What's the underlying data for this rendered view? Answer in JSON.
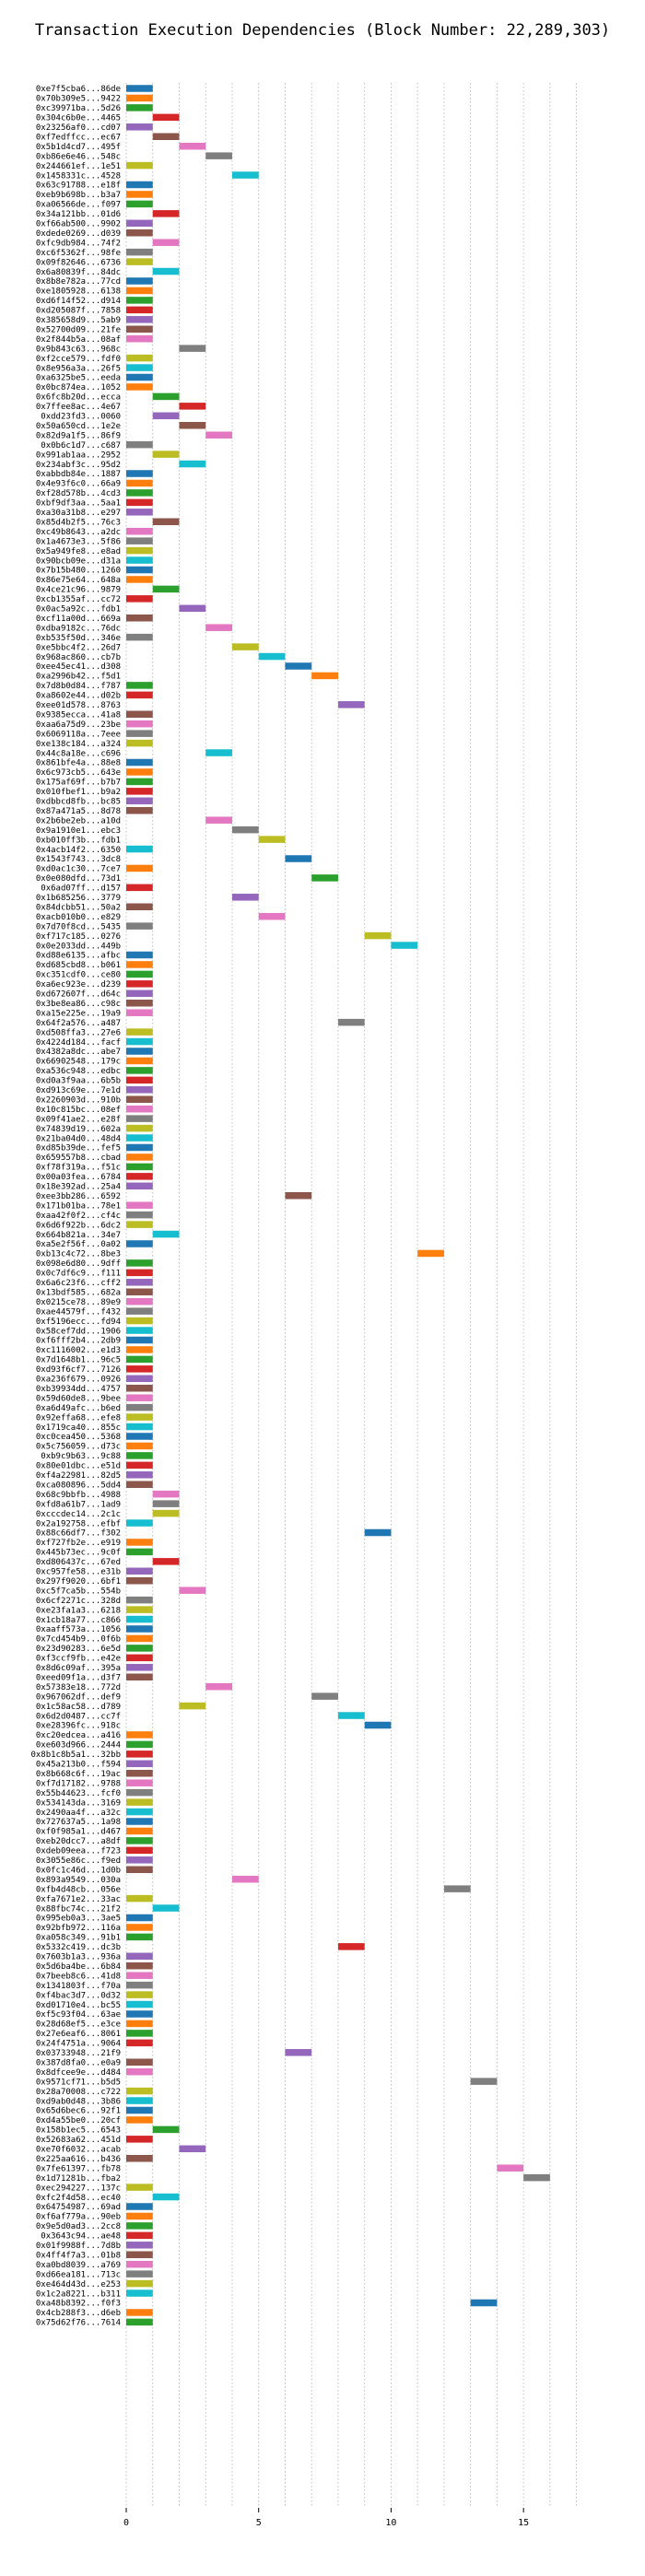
{
  "chart_data": {
    "type": "bar",
    "orientation": "horizontal",
    "subtype": "gantt",
    "title": "Transaction Execution Dependencies (Block Number: 22,289,303)",
    "xlabel": "",
    "ylabel": "",
    "xlim": [
      0,
      17.5
    ],
    "xticks": [
      0,
      5,
      10,
      15
    ],
    "grid": "vertical-dotted",
    "bar_length": 1,
    "palette": [
      "#1f77b4",
      "#ff7f0e",
      "#2ca02c",
      "#d62728",
      "#9467bd",
      "#8c564b",
      "#e377c2",
      "#7f7f7f",
      "#bcbd22",
      "#17becf"
    ],
    "transactions": [
      {
        "label": "0xe7f5cba6...86de",
        "start": 0
      },
      {
        "label": "0x70b309e5...9422",
        "start": 0
      },
      {
        "label": "0xc39971ba...5d26",
        "start": 0
      },
      {
        "label": "0x304c6b0e...4465",
        "start": 1
      },
      {
        "label": "0x23256af0...cd07",
        "start": 0
      },
      {
        "label": "0xf7edffcc...ec67",
        "start": 1
      },
      {
        "label": "0x5b1d4cd7...495f",
        "start": 2
      },
      {
        "label": "0xb86e6e46...548c",
        "start": 3
      },
      {
        "label": "0x244661ef...1e51",
        "start": 0
      },
      {
        "label": "0x1458331c...4528",
        "start": 4
      },
      {
        "label": "0x63c91788...e18f",
        "start": 0
      },
      {
        "label": "0xeb9b698b...b3a7",
        "start": 0
      },
      {
        "label": "0xa06566de...f097",
        "start": 0
      },
      {
        "label": "0x34a121bb...01d6",
        "start": 1
      },
      {
        "label": "0xf66ab500...9902",
        "start": 0
      },
      {
        "label": "0xdede0269...d039",
        "start": 0
      },
      {
        "label": "0xfc9db984...74f2",
        "start": 1
      },
      {
        "label": "0xc6f5362f...98fe",
        "start": 0
      },
      {
        "label": "0x09f82646...6736",
        "start": 0
      },
      {
        "label": "0x6a80839f...84dc",
        "start": 1
      },
      {
        "label": "0x8b8e782a...77cd",
        "start": 0
      },
      {
        "label": "0xe1805928...6138",
        "start": 0
      },
      {
        "label": "0xd6f14f52...d914",
        "start": 0
      },
      {
        "label": "0xd205087f...7858",
        "start": 0
      },
      {
        "label": "0x385658d9...5ab9",
        "start": 0
      },
      {
        "label": "0x52700d09...21fe",
        "start": 0
      },
      {
        "label": "0x2f844b5a...08af",
        "start": 0
      },
      {
        "label": "0x9b843c63...968c",
        "start": 2
      },
      {
        "label": "0xf2cce579...fdf0",
        "start": 0
      },
      {
        "label": "0x8e956a3a...26f5",
        "start": 0
      },
      {
        "label": "0xa6325be5...eeda",
        "start": 0
      },
      {
        "label": "0x0bc874ea...1052",
        "start": 0
      },
      {
        "label": "0x6fc8b20d...ecca",
        "start": 1
      },
      {
        "label": "0x7ffee8ac...4e67",
        "start": 2
      },
      {
        "label": "0xdd23fd3...0060",
        "start": 1
      },
      {
        "label": "0x50a650cd...1e2e",
        "start": 2
      },
      {
        "label": "0x82d9a1f5...86f9",
        "start": 3
      },
      {
        "label": "0x0b6c1d7...c687",
        "start": 0
      },
      {
        "label": "0x991ab1aa...2952",
        "start": 1
      },
      {
        "label": "0x234abf3c...95d2",
        "start": 2
      },
      {
        "label": "0xabbdb84e...1887",
        "start": 0
      },
      {
        "label": "0x4e93f6c0...66a9",
        "start": 0
      },
      {
        "label": "0xf28d578b...4cd3",
        "start": 0
      },
      {
        "label": "0xbf9df3aa...5aa1",
        "start": 0
      },
      {
        "label": "0xa30a31b8...e297",
        "start": 0
      },
      {
        "label": "0x85d4b2f5...76c3",
        "start": 1
      },
      {
        "label": "0xc49b8643...a2dc",
        "start": 0
      },
      {
        "label": "0x1a4673e3...5f86",
        "start": 0
      },
      {
        "label": "0x5a949fe8...e8ad",
        "start": 0
      },
      {
        "label": "0x90bcb09e...d31a",
        "start": 0
      },
      {
        "label": "0x7b15b480...1260",
        "start": 0
      },
      {
        "label": "0x86e75e64...648a",
        "start": 0
      },
      {
        "label": "0x4ce21c96...9879",
        "start": 1
      },
      {
        "label": "0xcb1355af...cc72",
        "start": 0
      },
      {
        "label": "0x0ac5a92c...fdb1",
        "start": 2
      },
      {
        "label": "0xcf11a00d...669a",
        "start": 0
      },
      {
        "label": "0xdba9182c...76dc",
        "start": 3
      },
      {
        "label": "0xb535f50d...346e",
        "start": 0
      },
      {
        "label": "0xe5bbc4f2...26d7",
        "start": 4
      },
      {
        "label": "0x968ac860...cb7b",
        "start": 5
      },
      {
        "label": "0xee45ec41...d308",
        "start": 6
      },
      {
        "label": "0xa2996b42...f5d1",
        "start": 7
      },
      {
        "label": "0x7d8b0d84...f787",
        "start": 0
      },
      {
        "label": "0xa8602e44...d02b",
        "start": 0
      },
      {
        "label": "0xee01d578...8763",
        "start": 8
      },
      {
        "label": "0x9385ecca...41a8",
        "start": 0
      },
      {
        "label": "0xaa6a75d9...23be",
        "start": 0
      },
      {
        "label": "0x6069118a...7eee",
        "start": 0
      },
      {
        "label": "0xe138c184...a324",
        "start": 0
      },
      {
        "label": "0x44c8a18e...c696",
        "start": 3
      },
      {
        "label": "0x861bfe4a...88e8",
        "start": 0
      },
      {
        "label": "0x6c973cb5...643e",
        "start": 0
      },
      {
        "label": "0x175af69f...b7b7",
        "start": 0
      },
      {
        "label": "0x010fbef1...b9a2",
        "start": 0
      },
      {
        "label": "0xdbbcd8fb...bc85",
        "start": 0
      },
      {
        "label": "0x87a471a5...8d78",
        "start": 0
      },
      {
        "label": "0x2b6be2eb...a10d",
        "start": 3
      },
      {
        "label": "0x9a1910e1...ebc3",
        "start": 4
      },
      {
        "label": "0xb010ff3b...fdb1",
        "start": 5
      },
      {
        "label": "0x4acb14f2...6350",
        "start": 0
      },
      {
        "label": "0x1543f743...3dc8",
        "start": 6
      },
      {
        "label": "0xd0ac1c30...7ce7",
        "start": 0
      },
      {
        "label": "0x0e080dfd...73d1",
        "start": 7
      },
      {
        "label": "0x6ad07ff...d157",
        "start": 0
      },
      {
        "label": "0x1b685256...3779",
        "start": 4
      },
      {
        "label": "0x84dcbb51...50a2",
        "start": 0
      },
      {
        "label": "0xacb010b0...e829",
        "start": 5
      },
      {
        "label": "0x7d70f8cd...5435",
        "start": 0
      },
      {
        "label": "0xf717c185...0276",
        "start": 9
      },
      {
        "label": "0x0e2033dd...449b",
        "start": 10
      },
      {
        "label": "0xd88e6135...afbc",
        "start": 0
      },
      {
        "label": "0xd685cbd8...b061",
        "start": 0
      },
      {
        "label": "0xc351cdf0...ce80",
        "start": 0
      },
      {
        "label": "0xa6ec923e...d239",
        "start": 0
      },
      {
        "label": "0xd672607f...d64c",
        "start": 0
      },
      {
        "label": "0x3be8ea86...c98c",
        "start": 0
      },
      {
        "label": "0xa15e225e...19a9",
        "start": 0
      },
      {
        "label": "0x64f2a576...a487",
        "start": 8
      },
      {
        "label": "0xd508ffa3...27e6",
        "start": 0
      },
      {
        "label": "0x4224d184...facf",
        "start": 0
      },
      {
        "label": "0x4382a8dc...abe7",
        "start": 0
      },
      {
        "label": "0x66902548...179c",
        "start": 0
      },
      {
        "label": "0xa536c948...edbc",
        "start": 0
      },
      {
        "label": "0xd0a3f9aa...6b5b",
        "start": 0
      },
      {
        "label": "0xd913c69e...7e1d",
        "start": 0
      },
      {
        "label": "0x2260903d...910b",
        "start": 0
      },
      {
        "label": "0x10c815bc...08ef",
        "start": 0
      },
      {
        "label": "0x09f41ae2...e28f",
        "start": 0
      },
      {
        "label": "0x74839d19...602a",
        "start": 0
      },
      {
        "label": "0x21ba04d0...48d4",
        "start": 0
      },
      {
        "label": "0xd85b39de...fef5",
        "start": 0
      },
      {
        "label": "0x659557b8...cbad",
        "start": 0
      },
      {
        "label": "0xf78f319a...f51c",
        "start": 0
      },
      {
        "label": "0x00a03fea...6784",
        "start": 0
      },
      {
        "label": "0x18e392ad...25a4",
        "start": 0
      },
      {
        "label": "0xee3bb286...6592",
        "start": 6
      },
      {
        "label": "0x171b01ba...78e1",
        "start": 0
      },
      {
        "label": "0xaa42f0f2...cf4c",
        "start": 0
      },
      {
        "label": "0x6d6f922b...6dc2",
        "start": 0
      },
      {
        "label": "0x664b821a...34e7",
        "start": 1
      },
      {
        "label": "0xa5e2f56f...0a02",
        "start": 0
      },
      {
        "label": "0xb13c4c72...8be3",
        "start": 11
      },
      {
        "label": "0x098e6d80...9dff",
        "start": 0
      },
      {
        "label": "0x0c7df6c9...f111",
        "start": 0
      },
      {
        "label": "0x6a6c23f6...cff2",
        "start": 0
      },
      {
        "label": "0x13bdf585...682a",
        "start": 0
      },
      {
        "label": "0x0215ce78...89e9",
        "start": 0
      },
      {
        "label": "0xae44579f...f432",
        "start": 0
      },
      {
        "label": "0xf5196ecc...fd94",
        "start": 0
      },
      {
        "label": "0x58cef7dd...1906",
        "start": 0
      },
      {
        "label": "0xf6fff2b4...2db9",
        "start": 0
      },
      {
        "label": "0xc1116002...e1d3",
        "start": 0
      },
      {
        "label": "0x7d1648b1...96c5",
        "start": 0
      },
      {
        "label": "0xd93f6cf7...7126",
        "start": 0
      },
      {
        "label": "0xa236f679...0926",
        "start": 0
      },
      {
        "label": "0xb39934dd...4757",
        "start": 0
      },
      {
        "label": "0x59d60de8...9bee",
        "start": 0
      },
      {
        "label": "0xa6d49afc...b6ed",
        "start": 0
      },
      {
        "label": "0x92effa68...efe8",
        "start": 0
      },
      {
        "label": "0x1719ca40...855c",
        "start": 0
      },
      {
        "label": "0xc0cea450...5368",
        "start": 0
      },
      {
        "label": "0x5c756059...d73c",
        "start": 0
      },
      {
        "label": "0xb9c9b63...9c88",
        "start": 0
      },
      {
        "label": "0x80e01dbc...e51d",
        "start": 0
      },
      {
        "label": "0xf4a22981...82d5",
        "start": 0
      },
      {
        "label": "0xca080896...5dd4",
        "start": 0
      },
      {
        "label": "0x68c9bbfb...4988",
        "start": 1
      },
      {
        "label": "0xfd8a61b7...1ad9",
        "start": 1
      },
      {
        "label": "0xcccdec14...2c1c",
        "start": 1
      },
      {
        "label": "0x2a192758...efbf",
        "start": 0
      },
      {
        "label": "0x88c66df7...f302",
        "start": 9
      },
      {
        "label": "0xf727fb2e...e919",
        "start": 0
      },
      {
        "label": "0x445b73ec...9c0f",
        "start": 0
      },
      {
        "label": "0xd806437c...67ed",
        "start": 1
      },
      {
        "label": "0xc957fe58...e31b",
        "start": 0
      },
      {
        "label": "0x297f9020...6bf1",
        "start": 0
      },
      {
        "label": "0xc5f7ca5b...554b",
        "start": 2
      },
      {
        "label": "0x6cf2271c...328d",
        "start": 0
      },
      {
        "label": "0xe23fa1a3...6218",
        "start": 0
      },
      {
        "label": "0x1cb18a77...c866",
        "start": 0
      },
      {
        "label": "0xaaff573a...1056",
        "start": 0
      },
      {
        "label": "0x7cd454b9...0f6b",
        "start": 0
      },
      {
        "label": "0x23d90283...6e5d",
        "start": 0
      },
      {
        "label": "0xf3ccf9fb...e42e",
        "start": 0
      },
      {
        "label": "0x8d6c09af...395a",
        "start": 0
      },
      {
        "label": "0xeed09f1a...d3f7",
        "start": 0
      },
      {
        "label": "0x57383e18...772d",
        "start": 3
      },
      {
        "label": "0x967062df...def9",
        "start": 7
      },
      {
        "label": "0x1c58ac58...d789",
        "start": 2
      },
      {
        "label": "0x6d2d0487...cc7f",
        "start": 8
      },
      {
        "label": "0xe28396fc...918c",
        "start": 9
      },
      {
        "label": "0xc20edcea...a416",
        "start": 0
      },
      {
        "label": "0xe603d966...2444",
        "start": 0
      },
      {
        "label": "0x8b1c8b5a1...32bb",
        "start": 0
      },
      {
        "label": "0x45a213b0...f594",
        "start": 0
      },
      {
        "label": "0x8b668c6f...19ac",
        "start": 0
      },
      {
        "label": "0xf7d17182...9788",
        "start": 0
      },
      {
        "label": "0x55b44623...fcf0",
        "start": 0
      },
      {
        "label": "0x534143da...3169",
        "start": 0
      },
      {
        "label": "0x2490aa4f...a32c",
        "start": 0
      },
      {
        "label": "0x727637a5...1a98",
        "start": 0
      },
      {
        "label": "0xf0f985a1...d467",
        "start": 0
      },
      {
        "label": "0xeb20dcc7...a8df",
        "start": 0
      },
      {
        "label": "0xdeb09eea...f723",
        "start": 0
      },
      {
        "label": "0x3055e86c...f9ed",
        "start": 0
      },
      {
        "label": "0x0fc1c46d...1d0b",
        "start": 0
      },
      {
        "label": "0x893a9549...030a",
        "start": 4
      },
      {
        "label": "0xfb4d48cb...056e",
        "start": 12
      },
      {
        "label": "0xfa7671e2...33ac",
        "start": 0
      },
      {
        "label": "0x88fbc74c...21f2",
        "start": 1
      },
      {
        "label": "0x995eb0a3...3ae5",
        "start": 0
      },
      {
        "label": "0x92bfb972...116a",
        "start": 0
      },
      {
        "label": "0xa058c349...91b1",
        "start": 0
      },
      {
        "label": "0x5332c419...dc3b",
        "start": 8
      },
      {
        "label": "0x7603b1a3...936a",
        "start": 0
      },
      {
        "label": "0x5d6ba4be...6b84",
        "start": 0
      },
      {
        "label": "0x7beeb8c6...41d8",
        "start": 0
      },
      {
        "label": "0x1341803f...f70a",
        "start": 0
      },
      {
        "label": "0xf4bac3d7...0d32",
        "start": 0
      },
      {
        "label": "0xd01710e4...bc55",
        "start": 0
      },
      {
        "label": "0xf5c93f04...63ae",
        "start": 0
      },
      {
        "label": "0x28d68ef5...e3ce",
        "start": 0
      },
      {
        "label": "0x27e6eaf6...8061",
        "start": 0
      },
      {
        "label": "0x24f4751a...9064",
        "start": 0
      },
      {
        "label": "0x03733948...21f9",
        "start": 6
      },
      {
        "label": "0x387d8fa0...e0a9",
        "start": 0
      },
      {
        "label": "0x8dfcee9e...d484",
        "start": 0
      },
      {
        "label": "0x9571cf71...b5d5",
        "start": 13
      },
      {
        "label": "0x28a70008...c722",
        "start": 0
      },
      {
        "label": "0xd9ab0d48...3b86",
        "start": 0
      },
      {
        "label": "0x65d6bec6...92f1",
        "start": 0
      },
      {
        "label": "0xd4a55be0...20cf",
        "start": 0
      },
      {
        "label": "0x158b1ec5...6543",
        "start": 1
      },
      {
        "label": "0x52683a62...451d",
        "start": 0
      },
      {
        "label": "0xe70f6032...acab",
        "start": 2
      },
      {
        "label": "0x225aa616...b436",
        "start": 0
      },
      {
        "label": "0x7fe61397...fb78",
        "start": 14
      },
      {
        "label": "0x1d71281b...fba2",
        "start": 15
      },
      {
        "label": "0xec294227...137c",
        "start": 0
      },
      {
        "label": "0xfc2f4d58...ec40",
        "start": 1
      },
      {
        "label": "0x64754987...69ad",
        "start": 0
      },
      {
        "label": "0xf6af779a...90eb",
        "start": 0
      },
      {
        "label": "0x9e5d0ad3...2cc8",
        "start": 0
      },
      {
        "label": "0x3643c94...ae48",
        "start": 0
      },
      {
        "label": "0x01f9988f...7d8b",
        "start": 0
      },
      {
        "label": "0x4ff4f7a3...01b8",
        "start": 0
      },
      {
        "label": "0xa0bd8039...a769",
        "start": 0
      },
      {
        "label": "0xd66ea181...713c",
        "start": 0
      },
      {
        "label": "0xe464d43d...e253",
        "start": 0
      },
      {
        "label": "0x1c2a8221...b311",
        "start": 0
      },
      {
        "label": "0xa48b8392...f0f3",
        "start": 13
      },
      {
        "label": "0x4cb288f3...d6eb",
        "start": 0
      },
      {
        "label": "0x75d62f76...7614",
        "start": 0
      }
    ]
  }
}
